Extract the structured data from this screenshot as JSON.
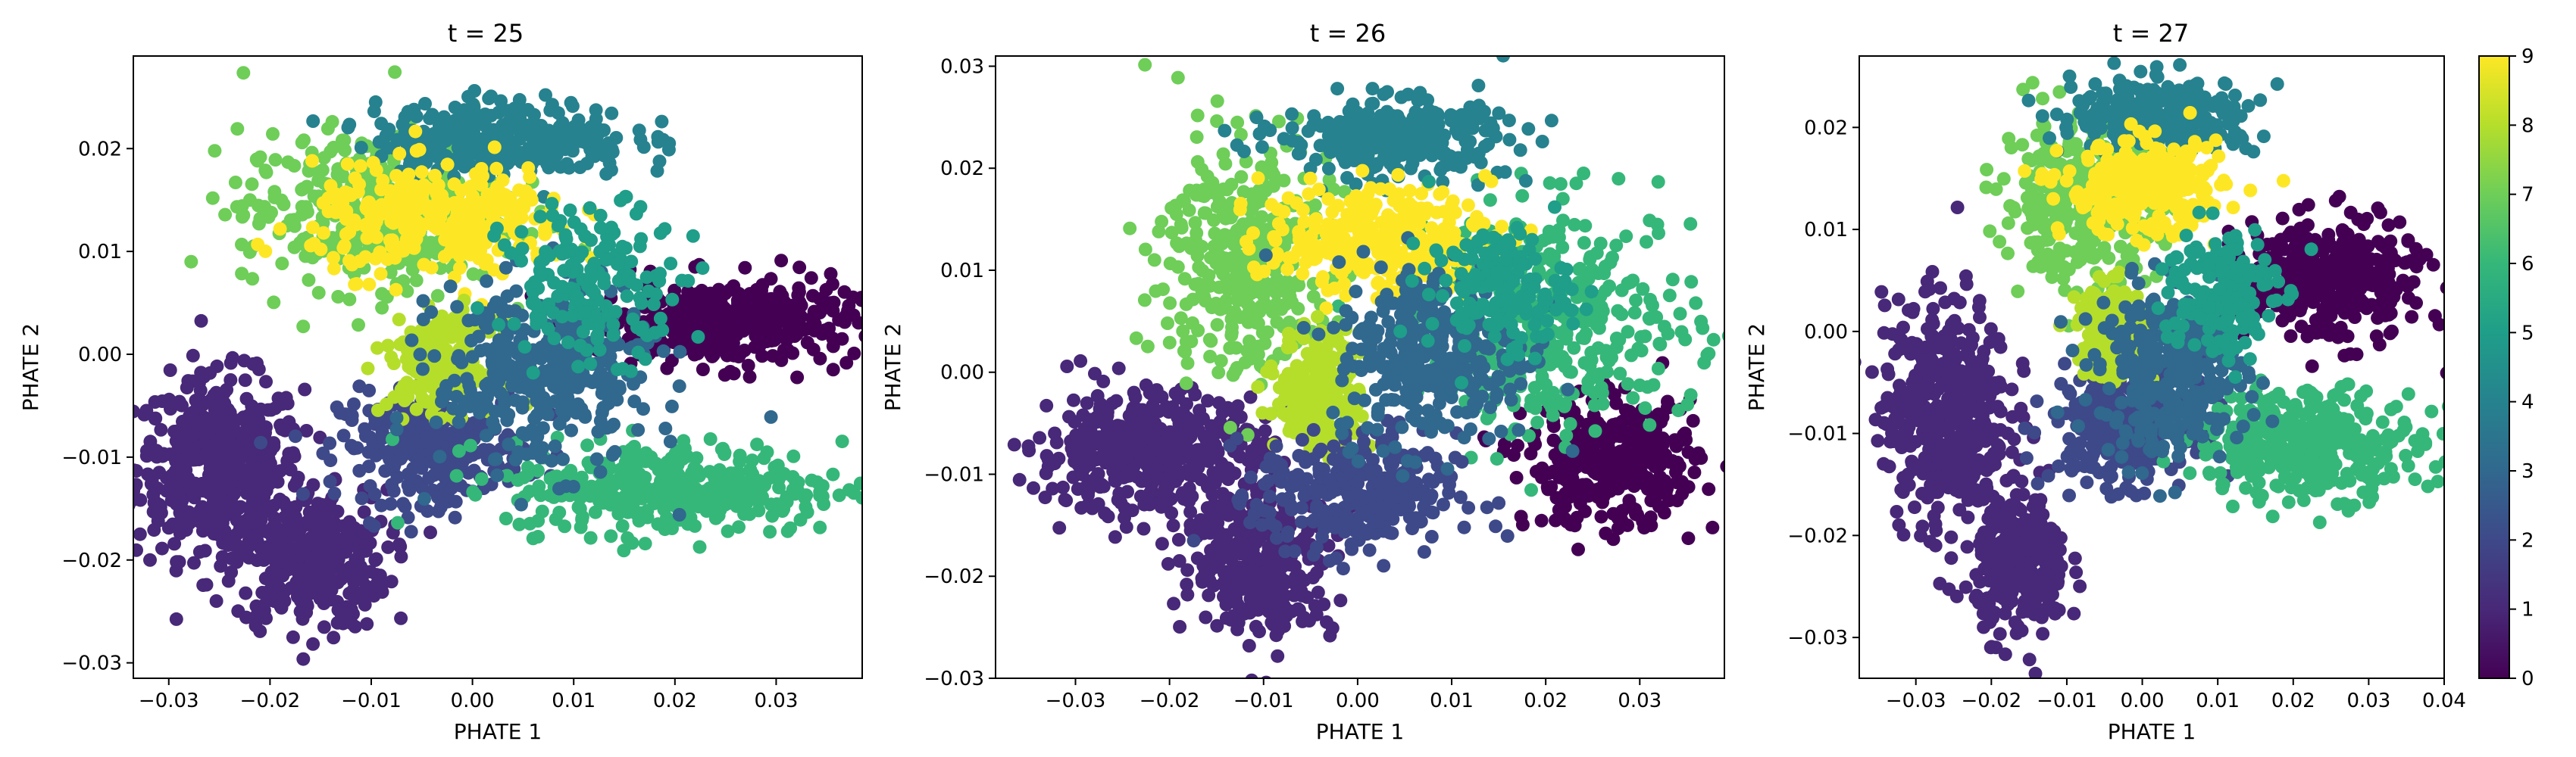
{
  "colors": {
    "viridis": [
      "#440154",
      "#482878",
      "#3e4989",
      "#31688e",
      "#26828e",
      "#1f9e89",
      "#35b779",
      "#6ece58",
      "#b5de2b",
      "#fde725"
    ]
  },
  "colorbar": {
    "ticks": [
      "0",
      "1",
      "2",
      "3",
      "4",
      "5",
      "6",
      "7",
      "8",
      "9"
    ],
    "vmin": 0,
    "vmax": 9
  },
  "chart_data": [
    {
      "type": "scatter",
      "title": "t = 25",
      "xlabel": "PHATE 1",
      "ylabel": "PHATE 2",
      "xlim": [
        -0.0335,
        0.0385
      ],
      "ylim": [
        -0.0315,
        0.029
      ],
      "xticks": [
        "−0.03",
        "−0.02",
        "−0.01",
        "0.00",
        "0.01",
        "0.02",
        "0.03"
      ],
      "xtick_values": [
        -0.03,
        -0.02,
        -0.01,
        0.0,
        0.01,
        0.02,
        0.03
      ],
      "yticks": [
        "−0.03",
        "−0.02",
        "−0.01",
        "0.00",
        "0.01",
        "0.02"
      ],
      "ytick_values": [
        -0.03,
        -0.02,
        -0.01,
        0.0,
        0.01,
        0.02
      ],
      "clusters": [
        {
          "label": 1,
          "center": [
            -0.025,
            -0.011
          ],
          "spread": [
            0.0055,
            0.0058
          ],
          "n": 500
        },
        {
          "label": 1,
          "center": [
            -0.016,
            -0.02
          ],
          "spread": [
            0.005,
            0.0045
          ],
          "n": 350
        },
        {
          "label": 2,
          "center": [
            -0.004,
            -0.009
          ],
          "spread": [
            0.006,
            0.0035
          ],
          "n": 320
        },
        {
          "label": 0,
          "center": [
            0.025,
            0.003
          ],
          "spread": [
            0.0085,
            0.0028
          ],
          "n": 380
        },
        {
          "label": 6,
          "center": [
            0.02,
            -0.013
          ],
          "spread": [
            0.011,
            0.003
          ],
          "n": 380
        },
        {
          "label": 7,
          "center": [
            -0.01,
            0.014
          ],
          "spread": [
            0.0085,
            0.005
          ],
          "n": 420
        },
        {
          "label": 4,
          "center": [
            0.003,
            0.021
          ],
          "spread": [
            0.0085,
            0.0025
          ],
          "n": 320
        },
        {
          "label": 9,
          "center": [
            -0.003,
            0.013
          ],
          "spread": [
            0.0085,
            0.0035
          ],
          "n": 320
        },
        {
          "label": 8,
          "center": [
            -0.003,
            -0.001
          ],
          "spread": [
            0.0035,
            0.003
          ],
          "n": 220
        },
        {
          "label": 3,
          "center": [
            0.007,
            -0.002
          ],
          "spread": [
            0.007,
            0.006
          ],
          "n": 360
        },
        {
          "label": 5,
          "center": [
            0.012,
            0.007
          ],
          "spread": [
            0.006,
            0.005
          ],
          "n": 180
        }
      ]
    },
    {
      "type": "scatter",
      "title": "t = 26",
      "xlabel": "PHATE 1",
      "ylabel": "PHATE 2",
      "xlim": [
        -0.0385,
        0.039
      ],
      "ylim": [
        -0.03,
        0.031
      ],
      "xticks": [
        "−0.03",
        "−0.02",
        "−0.01",
        "0.00",
        "0.01",
        "0.02",
        "0.03"
      ],
      "xtick_values": [
        -0.03,
        -0.02,
        -0.01,
        0.0,
        0.01,
        0.02,
        0.03
      ],
      "yticks": [
        "−0.03",
        "−0.02",
        "−0.01",
        "0.00",
        "0.01",
        "0.02",
        "0.03"
      ],
      "ytick_values": [
        -0.03,
        -0.02,
        -0.01,
        0.0,
        0.01,
        0.02,
        0.03
      ],
      "clusters": [
        {
          "label": 1,
          "center": [
            -0.022,
            -0.008
          ],
          "spread": [
            0.008,
            0.004
          ],
          "n": 500
        },
        {
          "label": 1,
          "center": [
            -0.01,
            -0.019
          ],
          "spread": [
            0.005,
            0.0045
          ],
          "n": 320
        },
        {
          "label": 0,
          "center": [
            0.027,
            -0.009
          ],
          "spread": [
            0.006,
            0.004
          ],
          "n": 380
        },
        {
          "label": 6,
          "center": [
            0.021,
            0.005
          ],
          "spread": [
            0.01,
            0.0075
          ],
          "n": 380
        },
        {
          "label": 7,
          "center": [
            -0.012,
            0.011
          ],
          "spread": [
            0.006,
            0.008
          ],
          "n": 380
        },
        {
          "label": 4,
          "center": [
            0.004,
            0.023
          ],
          "spread": [
            0.008,
            0.0025
          ],
          "n": 320
        },
        {
          "label": 9,
          "center": [
            0.002,
            0.013
          ],
          "spread": [
            0.008,
            0.0035
          ],
          "n": 300
        },
        {
          "label": 8,
          "center": [
            -0.004,
            -0.002
          ],
          "spread": [
            0.003,
            0.004
          ],
          "n": 220
        },
        {
          "label": 2,
          "center": [
            0.0,
            -0.012
          ],
          "spread": [
            0.007,
            0.004
          ],
          "n": 320
        },
        {
          "label": 3,
          "center": [
            0.008,
            0.002
          ],
          "spread": [
            0.007,
            0.006
          ],
          "n": 320
        },
        {
          "label": 5,
          "center": [
            0.015,
            0.008
          ],
          "spread": [
            0.005,
            0.004
          ],
          "n": 160
        }
      ]
    },
    {
      "type": "scatter",
      "title": "t = 27",
      "xlabel": "PHATE 1",
      "ylabel": "PHATE 2",
      "xlim": [
        -0.0375,
        0.04
      ],
      "ylim": [
        -0.034,
        0.027
      ],
      "xticks": [
        "−0.03",
        "−0.02",
        "−0.01",
        "0.00",
        "0.01",
        "0.02",
        "0.03",
        "0.04"
      ],
      "xtick_values": [
        -0.03,
        -0.02,
        -0.01,
        0.0,
        0.01,
        0.02,
        0.03,
        0.04
      ],
      "yticks": [
        "−0.03",
        "−0.02",
        "−0.01",
        "0.00",
        "0.01",
        "0.02"
      ],
      "ytick_values": [
        -0.03,
        -0.02,
        -0.01,
        0.0,
        0.01,
        0.02
      ],
      "clusters": [
        {
          "label": 1,
          "center": [
            -0.026,
            -0.008
          ],
          "spread": [
            0.0055,
            0.0075
          ],
          "n": 480
        },
        {
          "label": 1,
          "center": [
            -0.016,
            -0.023
          ],
          "spread": [
            0.004,
            0.0045
          ],
          "n": 300
        },
        {
          "label": 2,
          "center": [
            -0.003,
            -0.009
          ],
          "spread": [
            0.006,
            0.004
          ],
          "n": 300
        },
        {
          "label": 0,
          "center": [
            0.025,
            0.005
          ],
          "spread": [
            0.008,
            0.004
          ],
          "n": 360
        },
        {
          "label": 6,
          "center": [
            0.022,
            -0.011
          ],
          "spread": [
            0.01,
            0.0035
          ],
          "n": 360
        },
        {
          "label": 7,
          "center": [
            -0.008,
            0.013
          ],
          "spread": [
            0.007,
            0.005
          ],
          "n": 380
        },
        {
          "label": 4,
          "center": [
            0.003,
            0.021
          ],
          "spread": [
            0.008,
            0.0025
          ],
          "n": 300
        },
        {
          "label": 9,
          "center": [
            0.0,
            0.014
          ],
          "spread": [
            0.007,
            0.003
          ],
          "n": 300
        },
        {
          "label": 8,
          "center": [
            -0.004,
            0.0
          ],
          "spread": [
            0.003,
            0.003
          ],
          "n": 200
        },
        {
          "label": 3,
          "center": [
            0.004,
            -0.004
          ],
          "spread": [
            0.0065,
            0.0055
          ],
          "n": 320
        },
        {
          "label": 5,
          "center": [
            0.01,
            0.004
          ],
          "spread": [
            0.005,
            0.0045
          ],
          "n": 180
        }
      ]
    }
  ]
}
